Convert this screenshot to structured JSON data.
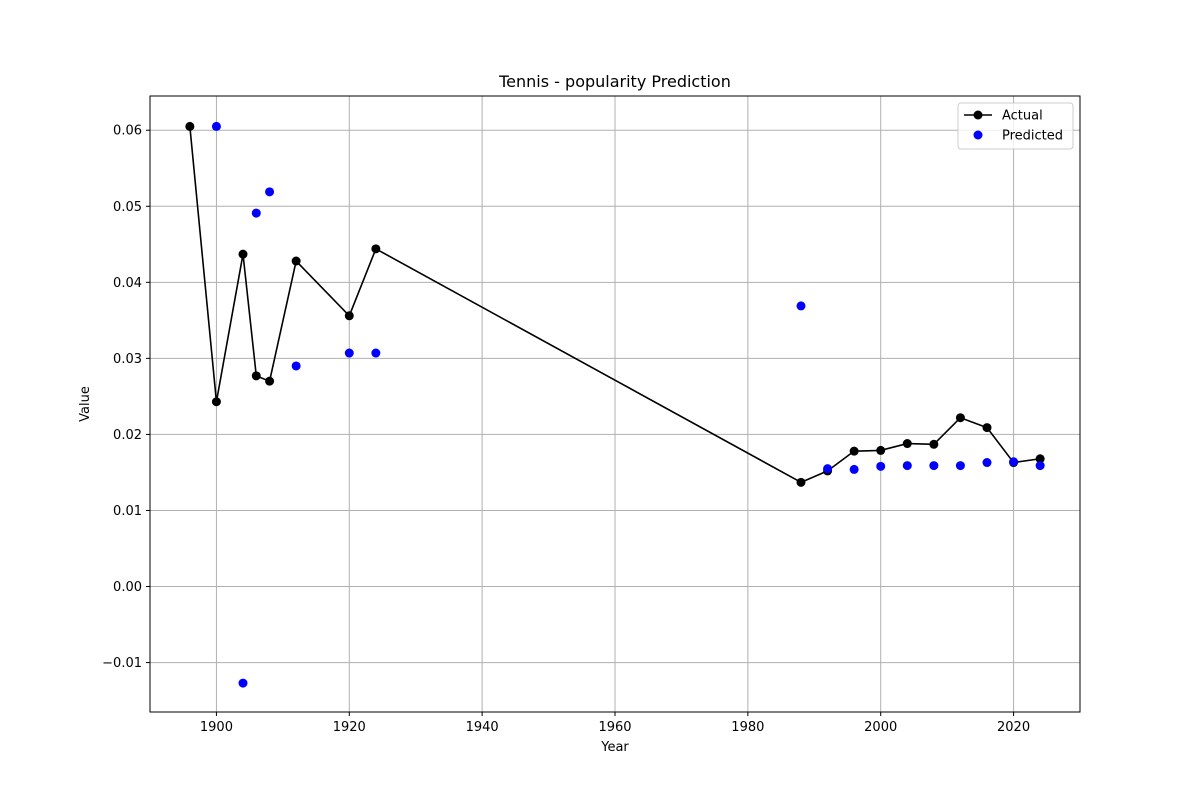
{
  "chart_data": {
    "type": "line",
    "title": "Tennis - popularity Prediction",
    "xlabel": "Year",
    "ylabel": "Value",
    "xlim": [
      1890,
      2030
    ],
    "ylim": [
      -0.0165,
      0.0645
    ],
    "xticks": [
      1900,
      1920,
      1940,
      1960,
      1980,
      2000,
      2020
    ],
    "yticks": [
      -0.01,
      0.0,
      0.01,
      0.02,
      0.03,
      0.04,
      0.05,
      0.06
    ],
    "ytick_labels": [
      "−0.01",
      "0.00",
      "0.01",
      "0.02",
      "0.03",
      "0.04",
      "0.05",
      "0.06"
    ],
    "grid": true,
    "legend_position": "top-right",
    "series": [
      {
        "name": "Actual",
        "style": "line-marker",
        "color": "#000000",
        "x": [
          1896,
          1900,
          1904,
          1906,
          1908,
          1912,
          1920,
          1924,
          1988,
          1992,
          1996,
          2000,
          2004,
          2008,
          2012,
          2016,
          2020,
          2024
        ],
        "y": [
          0.0605,
          0.0243,
          0.0437,
          0.0277,
          0.027,
          0.0428,
          0.0356,
          0.0444,
          0.0137,
          0.0152,
          0.0178,
          0.0179,
          0.0188,
          0.0187,
          0.0222,
          0.0209,
          0.0163,
          0.0168
        ]
      },
      {
        "name": "Predicted",
        "style": "scatter",
        "color": "#0000ff",
        "x": [
          1900,
          1904,
          1906,
          1908,
          1912,
          1920,
          1924,
          1988,
          1992,
          1996,
          2000,
          2004,
          2008,
          2012,
          2016,
          2020,
          2024
        ],
        "y": [
          0.0605,
          -0.0127,
          0.0491,
          0.0519,
          0.029,
          0.0307,
          0.0307,
          0.0369,
          0.0155,
          0.0154,
          0.0158,
          0.0159,
          0.0159,
          0.0159,
          0.0163,
          0.0164,
          0.0159
        ]
      }
    ]
  }
}
